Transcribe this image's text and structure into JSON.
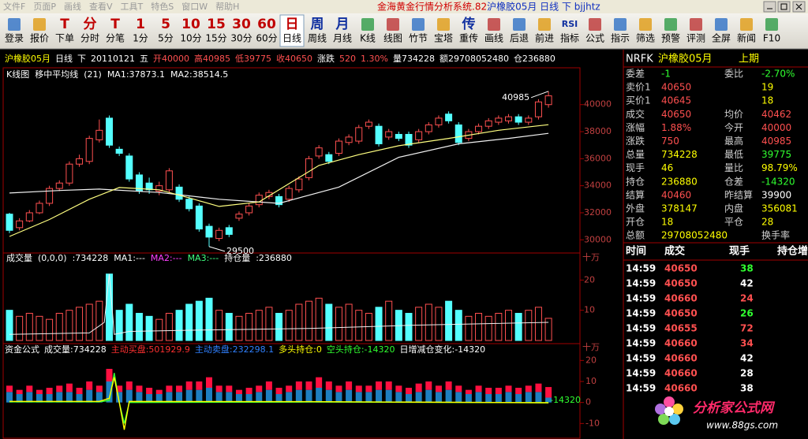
{
  "window": {
    "menu": [
      "文件F",
      "页面P",
      "画线",
      "查看V",
      "工具T",
      "特色S",
      "窗口W",
      "帮助H"
    ],
    "title_app": "金海黄金行情分析系统.82",
    "title_doc": "沪橡胶05月 日线 下 bjjhtz"
  },
  "toolbar": [
    {
      "label": "登录"
    },
    {
      "label": "报价"
    },
    {
      "glyph": "T",
      "color": "#c00000",
      "label": "下单"
    },
    {
      "glyph": "分",
      "color": "#c00000",
      "label": "分时"
    },
    {
      "glyph": "T",
      "color": "#c00000",
      "label": "分笔"
    },
    {
      "glyph": "1",
      "color": "#c00000",
      "label": "1分"
    },
    {
      "glyph": "5",
      "color": "#c00000",
      "label": "5分"
    },
    {
      "glyph": "10",
      "color": "#c00000",
      "label": "10分"
    },
    {
      "glyph": "15",
      "color": "#c00000",
      "label": "15分"
    },
    {
      "glyph": "30",
      "color": "#c00000",
      "label": "30分"
    },
    {
      "glyph": "60",
      "color": "#c00000",
      "label": "60分"
    },
    {
      "glyph": "日",
      "color": "#c00000",
      "label": "日线",
      "active": true
    },
    {
      "glyph": "周",
      "color": "#1030a0",
      "label": "周线"
    },
    {
      "glyph": "月",
      "color": "#1030a0",
      "label": "月线"
    },
    {
      "label": "K线"
    },
    {
      "label": "线图"
    },
    {
      "label": "竹节"
    },
    {
      "label": "宝塔"
    },
    {
      "glyph": "传",
      "color": "#1030a0",
      "label": "重传"
    },
    {
      "label": "画线"
    },
    {
      "label": "后退"
    },
    {
      "label": "前进"
    },
    {
      "glyph": "RSI",
      "color": "#1030a0",
      "label": "指标"
    },
    {
      "label": "公式"
    },
    {
      "label": "指示"
    },
    {
      "label": "筛选"
    },
    {
      "label": "预警"
    },
    {
      "label": "评测"
    },
    {
      "label": "全屏"
    },
    {
      "label": "新闻"
    },
    {
      "label": "F10"
    }
  ],
  "info_bar": [
    {
      "text": "沪橡胶05月",
      "color": "#ffff00"
    },
    {
      "text": "日线",
      "color": "#ffffff"
    },
    {
      "text": "下",
      "color": "#ffffff"
    },
    {
      "text": "20110121",
      "color": "#ffffff"
    },
    {
      "text": "五",
      "color": "#ffffff"
    },
    {
      "text": "开40000",
      "color": "#ff5050"
    },
    {
      "text": "高40985",
      "color": "#ff5050"
    },
    {
      "text": "低39775",
      "color": "#ff5050"
    },
    {
      "text": "收40650",
      "color": "#ff5050"
    },
    {
      "text": "涨跌",
      "color": "#ffffff"
    },
    {
      "text": "520",
      "color": "#ff5050"
    },
    {
      "text": "1.30%",
      "color": "#ff5050"
    },
    {
      "text": "量734228",
      "color": "#ffffff"
    },
    {
      "text": "额29708052480",
      "color": "#ffffff"
    },
    {
      "text": "仓236880",
      "color": "#ffffff"
    }
  ],
  "price_chart": {
    "type": "candlestick",
    "header": [
      {
        "text": "K线图",
        "color": "#ffffff"
      },
      {
        "text": "移中平均线",
        "color": "#ffffff"
      },
      {
        "text": "(21)",
        "color": "#ffffff"
      },
      {
        "text": "MA1:37873.1",
        "color": "#ffffff"
      },
      {
        "text": "MA2:38514.5",
        "color": "#ffffff"
      }
    ],
    "open": [
      31900,
      30900,
      31400,
      32000,
      32700,
      33800,
      34200,
      35600,
      35800,
      37400,
      39000,
      36700,
      36200,
      34800,
      34200,
      33600,
      33700,
      33900,
      33000,
      32500,
      31000,
      30100,
      30900,
      31600,
      32000,
      32600,
      33200,
      33200,
      33000,
      33700,
      34600,
      36200,
      36300,
      36400,
      37200,
      37300,
      38400,
      38400,
      37600,
      37800,
      37800,
      37400,
      38000,
      38500,
      39300,
      38500,
      37500,
      38000,
      38400,
      38700,
      38800,
      39100,
      38700,
      39100,
      40000
    ],
    "high": [
      32000,
      31600,
      32200,
      32900,
      34000,
      34400,
      35800,
      36300,
      37700,
      38900,
      39200,
      36900,
      36400,
      35000,
      34600,
      34300,
      35300,
      34100,
      33200,
      32700,
      31200,
      30900,
      31100,
      32100,
      32700,
      33500,
      33700,
      33400,
      34000,
      34700,
      36200,
      37000,
      36500,
      37500,
      37800,
      38500,
      38900,
      38600,
      38200,
      38000,
      38000,
      38200,
      38700,
      39200,
      39500,
      38700,
      38200,
      38600,
      39000,
      39200,
      39300,
      39300,
      39200,
      40400,
      40985
    ],
    "low": [
      30500,
      30700,
      31300,
      31900,
      32500,
      33600,
      34000,
      35400,
      35600,
      37200,
      36800,
      36200,
      34300,
      33400,
      33400,
      33300,
      33500,
      32800,
      32100,
      30600,
      29500,
      29900,
      30200,
      31400,
      31800,
      32400,
      33000,
      32400,
      32800,
      33500,
      34400,
      36000,
      35600,
      36200,
      37000,
      37100,
      38200,
      36900,
      37400,
      37300,
      36800,
      37200,
      37800,
      38300,
      38600,
      37000,
      37300,
      37800,
      38200,
      38500,
      38600,
      38500,
      38500,
      38900,
      39775
    ],
    "close": [
      30700,
      31400,
      32000,
      32700,
      33800,
      34200,
      35600,
      36000,
      37500,
      38100,
      37000,
      36400,
      34500,
      33600,
      33700,
      34000,
      35100,
      33000,
      32300,
      30800,
      30200,
      30700,
      30400,
      31900,
      32500,
      33300,
      33500,
      32600,
      33800,
      34500,
      36000,
      36800,
      35800,
      37300,
      37600,
      38300,
      38700,
      37100,
      38000,
      37500,
      37000,
      38000,
      38500,
      39000,
      38800,
      37200,
      38000,
      38400,
      38800,
      39000,
      39100,
      38700,
      39000,
      40200,
      40650
    ],
    "ma_lines": [
      {
        "name": "MA1",
        "color": "#f0f0f0",
        "x": [
          0,
          5,
          9,
          15,
          21,
          27,
          33,
          39,
          45,
          50,
          54
        ],
        "values": [
          33460,
          33650,
          33750,
          33500,
          33000,
          32700,
          33900,
          36100,
          37100,
          37500,
          37873.1
        ]
      },
      {
        "name": "MA2",
        "color": "#ffff80",
        "x": [
          0,
          4,
          8,
          11,
          15,
          18,
          21,
          25,
          31,
          35,
          39,
          44,
          49,
          54
        ],
        "values": [
          30250,
          31500,
          33000,
          33870,
          33700,
          33100,
          32470,
          32800,
          35500,
          36300,
          36960,
          37500,
          38100,
          38514.5
        ]
      }
    ],
    "annotations": [
      {
        "x": 54,
        "value": 40985
      },
      {
        "x": 20,
        "value": 29500
      }
    ],
    "up_color": "#ff5050",
    "down_color": "#54ffff",
    "ylim": [
      29200,
      42200
    ],
    "yticks": [
      30000,
      32000,
      34000,
      36000,
      38000,
      40000
    ]
  },
  "volume_chart": {
    "type": "bar",
    "unit": "十万",
    "header": [
      {
        "text": "成交量",
        "color": "#ffffff"
      },
      {
        "text": "(0,0,0)",
        "color": "#ffffff"
      },
      {
        "text": ":734228",
        "color": "#ffffff"
      },
      {
        "text": "MA1:---",
        "color": "#ffffff"
      },
      {
        "text": "MA2:---",
        "color": "#ff40ff"
      },
      {
        "text": "MA3:---",
        "color": "#40ff80"
      },
      {
        "text": "持仓量",
        "color": "#ffffff"
      },
      {
        "text": ":236880",
        "color": "#ffffff"
      }
    ],
    "values": [
      10,
      8,
      9,
      8,
      7,
      9,
      10,
      11,
      12,
      13,
      22,
      10,
      12,
      9,
      8,
      7,
      9,
      10,
      12,
      13,
      14,
      10,
      9,
      8,
      9,
      10,
      11,
      9,
      10,
      12,
      13,
      14,
      12,
      11,
      12,
      10,
      9,
      11,
      13,
      10,
      9,
      11,
      12,
      11,
      13,
      10,
      8,
      9,
      8,
      9,
      10,
      9,
      10,
      11,
      7.34228
    ],
    "open_interest": {
      "color": "#f0f0f0",
      "x": [
        0,
        8,
        9.5,
        10,
        10.5,
        12,
        20,
        30,
        40,
        54
      ],
      "values": [
        2,
        2.5,
        6,
        22,
        2,
        3,
        3.5,
        4,
        5,
        6
      ]
    },
    "ylim": [
      0,
      24
    ],
    "yticks": [
      10,
      20
    ]
  },
  "capital_chart": {
    "type": "stacked_bar",
    "unit": "十万",
    "header": [
      {
        "text": "资金公式",
        "color": "#ffffff"
      },
      {
        "text": "成交量:734228",
        "color": "#ffffff"
      },
      {
        "text": "主动买盘:501929.9",
        "color": "#ff3030"
      },
      {
        "text": "主动卖盘:232298.1",
        "color": "#3080ff"
      },
      {
        "text": "多头持仓:0",
        "color": "#ffff00"
      },
      {
        "text": "空头持仓:-14320",
        "color": "#30ff30"
      },
      {
        "text": "日增减仓变化:-14320",
        "color": "#ffffff"
      }
    ],
    "series": [
      {
        "name": "主动卖盘",
        "color": "#1e7fc0",
        "values": [
          5,
          4,
          5,
          4,
          4,
          5,
          5,
          4,
          6,
          5,
          10,
          5,
          6,
          5,
          4,
          4,
          5,
          5,
          6,
          6,
          7,
          5,
          5,
          4,
          4,
          5,
          6,
          4,
          5,
          6,
          6,
          7,
          6,
          5,
          6,
          5,
          5,
          6,
          6,
          5,
          4,
          5,
          6,
          5,
          6,
          5,
          4,
          5,
          4,
          4,
          5,
          4,
          5,
          5,
          2.322981
        ]
      },
      {
        "name": "主动买盘",
        "color": "#ff1040",
        "values": [
          3,
          2,
          3,
          2,
          3,
          3,
          4,
          3,
          4,
          3,
          6,
          3,
          4,
          3,
          3,
          2,
          3,
          3,
          4,
          4,
          5,
          3,
          3,
          2,
          3,
          3,
          4,
          3,
          3,
          4,
          4,
          5,
          4,
          3,
          4,
          3,
          3,
          4,
          4,
          3,
          3,
          4,
          4,
          3,
          4,
          3,
          2,
          3,
          3,
          3,
          3,
          3,
          3,
          4,
          5.019299
        ]
      }
    ],
    "lines": [
      {
        "name": "空头持仓",
        "color": "#30ff30",
        "x": [
          0,
          9,
          10,
          10.5,
          11,
          11.5,
          12,
          30,
          54
        ],
        "values": [
          0.3,
          0.3,
          1,
          14,
          0,
          -10,
          0,
          0.2,
          -0.1432
        ]
      },
      {
        "name": "日增减仓变化",
        "color": "#ffff00",
        "x": [
          0,
          9,
          10,
          10.5,
          11,
          11.5,
          12,
          30,
          54
        ],
        "values": [
          0.5,
          0.5,
          2,
          12,
          0,
          -13,
          0.5,
          0.4,
          -0.1432
        ]
      }
    ],
    "end_label": "-14320",
    "ylim": [
      -14,
      22
    ],
    "yticks": [
      20,
      10,
      0,
      -10
    ]
  },
  "quote": {
    "header": [
      "NRFK",
      "沪橡胶05月",
      "上期"
    ],
    "rows": [
      [
        {
          "text": "委差"
        },
        {
          "text": "-1",
          "color": "#30ff30"
        },
        {
          "text": "委比"
        },
        {
          "text": "-2.70%",
          "color": "#30ff30"
        }
      ],
      [
        {
          "text": "卖价1"
        },
        {
          "text": "40650",
          "color": "#ff5050"
        },
        {
          "text": "19",
          "color": "#ffff00"
        }
      ],
      [
        {
          "text": "买价1"
        },
        {
          "text": "40645",
          "color": "#ff5050"
        },
        {
          "text": "18",
          "color": "#ffff00"
        }
      ],
      [
        {
          "text": "成交"
        },
        {
          "text": "40650",
          "color": "#ff5050"
        },
        {
          "text": "均价"
        },
        {
          "text": "40462",
          "color": "#ff5050"
        }
      ],
      [
        {
          "text": "涨幅"
        },
        {
          "text": "1.88%",
          "color": "#ff5050"
        },
        {
          "text": "今开"
        },
        {
          "text": "40000",
          "color": "#ff5050"
        }
      ],
      [
        {
          "text": "涨跌"
        },
        {
          "text": "750",
          "color": "#ff5050"
        },
        {
          "text": "最高"
        },
        {
          "text": "40985",
          "color": "#ff5050"
        }
      ],
      [
        {
          "text": "总量"
        },
        {
          "text": "734228",
          "color": "#ffff00"
        },
        {
          "text": "最低"
        },
        {
          "text": "39775",
          "color": "#30ff30"
        }
      ],
      [
        {
          "text": "现手"
        },
        {
          "text": "46",
          "color": "#ffff00"
        },
        {
          "text": "量比"
        },
        {
          "text": "98.79%",
          "color": "#ffff00"
        }
      ],
      [
        {
          "text": "持仓"
        },
        {
          "text": "236880",
          "color": "#ffff00"
        },
        {
          "text": "仓差"
        },
        {
          "text": "-14320",
          "color": "#30ff30"
        }
      ],
      [
        {
          "text": "结算"
        },
        {
          "text": "40460",
          "color": "#ff5050"
        },
        {
          "text": "昨结算"
        },
        {
          "text": "39900",
          "color": "#ffffff"
        }
      ],
      [
        {
          "text": "外盘"
        },
        {
          "text": "378147",
          "color": "#ffff00"
        },
        {
          "text": "内盘"
        },
        {
          "text": "356081",
          "color": "#ffff00"
        }
      ],
      [
        {
          "text": "开仓"
        },
        {
          "text": "18",
          "color": "#ffff00"
        },
        {
          "text": "平仓"
        },
        {
          "text": "28",
          "color": "#ffff00"
        }
      ],
      [
        {
          "text": "总额"
        },
        {
          "text": "29708052480",
          "color": "#ffff00"
        },
        {
          "text": "换手率"
        }
      ]
    ]
  },
  "trades": {
    "columns": [
      "时间",
      "成交",
      "现手",
      "持仓增"
    ],
    "rows": [
      [
        {
          "text": "14:59"
        },
        {
          "text": "40650",
          "color": "#ff5050"
        },
        {
          "text": "38",
          "color": "#30ff30"
        }
      ],
      [
        {
          "text": "14:59"
        },
        {
          "text": "40650",
          "color": "#ff5050"
        },
        {
          "text": "42",
          "color": "#ffffff"
        }
      ],
      [
        {
          "text": "14:59"
        },
        {
          "text": "40660",
          "color": "#ff5050"
        },
        {
          "text": "24",
          "color": "#ff5050"
        }
      ],
      [
        {
          "text": "14:59"
        },
        {
          "text": "40650",
          "color": "#ff5050"
        },
        {
          "text": "26",
          "color": "#30ff30"
        }
      ],
      [
        {
          "text": "14:59"
        },
        {
          "text": "40655",
          "color": "#ff5050"
        },
        {
          "text": "72",
          "color": "#ff5050"
        }
      ],
      [
        {
          "text": "14:59"
        },
        {
          "text": "40660",
          "color": "#ff5050"
        },
        {
          "text": "34",
          "color": "#ff5050"
        }
      ],
      [
        {
          "text": "14:59"
        },
        {
          "text": "40660",
          "color": "#ff5050"
        },
        {
          "text": "42",
          "color": "#ffffff"
        }
      ],
      [
        {
          "text": "14:59"
        },
        {
          "text": "40660",
          "color": "#ff5050"
        },
        {
          "text": "28",
          "color": "#ffffff"
        }
      ],
      [
        {
          "text": "14:59"
        },
        {
          "text": "40660",
          "color": "#ff5050"
        },
        {
          "text": "38",
          "color": "#ffffff"
        }
      ]
    ]
  },
  "logo": {
    "name": "分析家公式网",
    "url": "www.88gs.com"
  }
}
